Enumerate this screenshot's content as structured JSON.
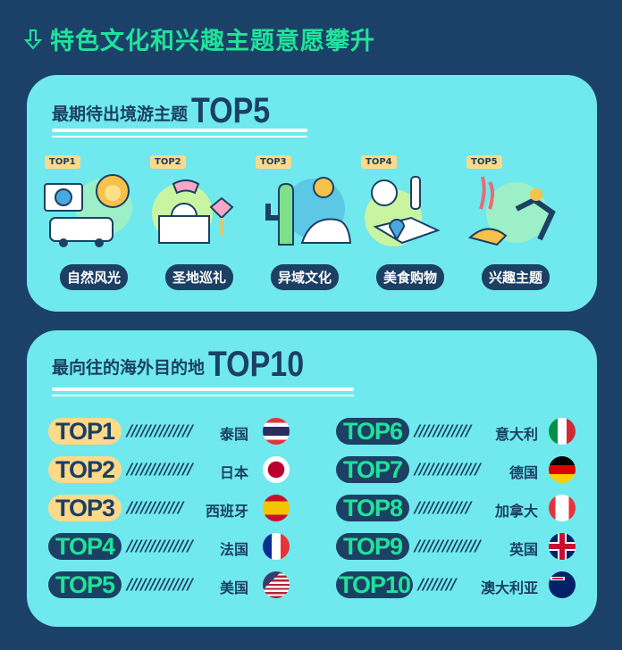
{
  "title": "特色文化和兴趣主题意愿攀升",
  "section1": {
    "heading": "最期待出境游主题",
    "heading_big": "TOP5",
    "items": [
      {
        "rank": "TOP1",
        "label": "自然风光",
        "icon": "camera-lion-van-icon"
      },
      {
        "rank": "TOP2",
        "label": "圣地巡礼",
        "icon": "mosque-mask-lantern-icon"
      },
      {
        "rank": "TOP3",
        "label": "异域文化",
        "icon": "cactus-sun-hat-icon"
      },
      {
        "rank": "TOP4",
        "label": "美食购物",
        "icon": "dining-map-icon"
      },
      {
        "rank": "TOP5",
        "label": "兴趣主题",
        "icon": "diver-coral-icon"
      }
    ]
  },
  "section2": {
    "heading": "最向往的海外目的地",
    "heading_big": "TOP10",
    "items": [
      {
        "rank": "TOP1",
        "slashes": "//////////////",
        "country": "泰国",
        "flag": "thailand-flag"
      },
      {
        "rank": "TOP2",
        "slashes": "//////////////",
        "country": "日本",
        "flag": "japan-flag"
      },
      {
        "rank": "TOP3",
        "slashes": "////////////",
        "country": "西班牙",
        "flag": "spain-flag"
      },
      {
        "rank": "TOP4",
        "slashes": "//////////////",
        "country": "法国",
        "flag": "france-flag"
      },
      {
        "rank": "TOP5",
        "slashes": "//////////////",
        "country": "美国",
        "flag": "usa-flag"
      },
      {
        "rank": "TOP6",
        "slashes": "////////////",
        "country": "意大利",
        "flag": "italy-flag"
      },
      {
        "rank": "TOP7",
        "slashes": "//////////////",
        "country": "德国",
        "flag": "germany-flag"
      },
      {
        "rank": "TOP8",
        "slashes": "////////////",
        "country": "加拿大",
        "flag": "canada-flag"
      },
      {
        "rank": "TOP9",
        "slashes": "//////////////",
        "country": "英国",
        "flag": "uk-flag"
      },
      {
        "rank": "TOP10",
        "slashes": "////////",
        "country": "澳大利亚",
        "flag": "australia-flag"
      }
    ]
  },
  "colors": {
    "background": "#1c4169",
    "card": "#6fe9ed",
    "accent_green": "#1fe39a",
    "dark": "#1c3f64",
    "badge_yellow": "#fdd98a"
  }
}
